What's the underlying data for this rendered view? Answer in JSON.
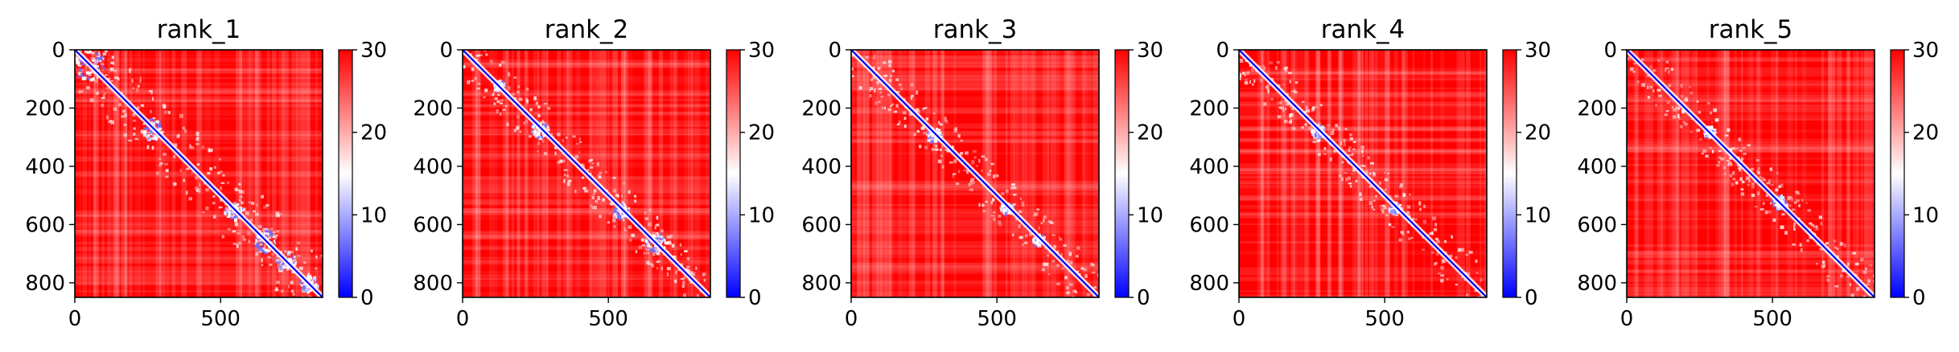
{
  "chart_data": [
    {
      "type": "heatmap",
      "title": "rank_1",
      "xticks": [
        0,
        500
      ],
      "yticks": [
        0,
        200,
        400,
        600,
        800
      ],
      "xlim": [
        0,
        850
      ],
      "ylim": [
        850,
        0
      ],
      "colorbar": {
        "min": 0,
        "max": 30,
        "ticks": [
          0,
          10,
          20,
          30
        ],
        "colormap": "bwr"
      },
      "colors": {
        "low": "#0000ff",
        "mid": "#ffffff",
        "high": "#ff0000"
      }
    },
    {
      "type": "heatmap",
      "title": "rank_2",
      "xticks": [
        0,
        500
      ],
      "yticks": [
        0,
        200,
        400,
        600,
        800
      ],
      "xlim": [
        0,
        850
      ],
      "ylim": [
        850,
        0
      ],
      "colorbar": {
        "min": 0,
        "max": 30,
        "ticks": [
          0,
          10,
          20,
          30
        ],
        "colormap": "bwr"
      },
      "colors": {
        "low": "#0000ff",
        "mid": "#ffffff",
        "high": "#ff0000"
      }
    },
    {
      "type": "heatmap",
      "title": "rank_3",
      "xticks": [
        0,
        500
      ],
      "yticks": [
        0,
        200,
        400,
        600,
        800
      ],
      "xlim": [
        0,
        850
      ],
      "ylim": [
        850,
        0
      ],
      "colorbar": {
        "min": 0,
        "max": 30,
        "ticks": [
          0,
          10,
          20,
          30
        ],
        "colormap": "bwr"
      },
      "colors": {
        "low": "#0000ff",
        "mid": "#ffffff",
        "high": "#ff0000"
      }
    },
    {
      "type": "heatmap",
      "title": "rank_4",
      "xticks": [
        0,
        500
      ],
      "yticks": [
        0,
        200,
        400,
        600,
        800
      ],
      "xlim": [
        0,
        850
      ],
      "ylim": [
        850,
        0
      ],
      "colorbar": {
        "min": 0,
        "max": 30,
        "ticks": [
          0,
          10,
          20,
          30
        ],
        "colormap": "bwr"
      },
      "colors": {
        "low": "#0000ff",
        "mid": "#ffffff",
        "high": "#ff0000"
      }
    },
    {
      "type": "heatmap",
      "title": "rank_5",
      "xticks": [
        0,
        500
      ],
      "yticks": [
        0,
        200,
        400,
        600,
        800
      ],
      "xlim": [
        0,
        850
      ],
      "ylim": [
        850,
        0
      ],
      "colorbar": {
        "min": 0,
        "max": 30,
        "ticks": [
          0,
          10,
          20,
          30
        ],
        "colormap": "bwr"
      },
      "colors": {
        "low": "#0000ff",
        "mid": "#ffffff",
        "high": "#ff0000"
      }
    }
  ]
}
